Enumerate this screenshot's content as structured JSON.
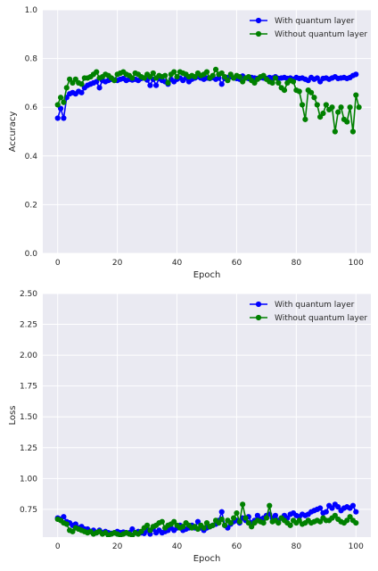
{
  "colors": {
    "with_quantum": "#0000ff",
    "without_quantum": "#008000",
    "plot_bg": "#eaeaf2",
    "grid": "#ffffff"
  },
  "chart_data": [
    {
      "type": "line",
      "title": "",
      "xlabel": "Epoch",
      "ylabel": "Accuracy",
      "xlim": [
        -5,
        105
      ],
      "ylim": [
        0,
        1
      ],
      "xticks": [
        "0",
        "20",
        "40",
        "60",
        "80",
        "100"
      ],
      "yticks": [
        "0.0",
        "0.2",
        "0.4",
        "0.6",
        "0.8",
        "1.0"
      ],
      "grid": true,
      "legend": "top-right",
      "series": [
        {
          "name": "With quantum layer",
          "color": "#0000ff",
          "values": [
            0.555,
            0.595,
            0.555,
            0.64,
            0.655,
            0.66,
            0.655,
            0.665,
            0.66,
            0.68,
            0.69,
            0.695,
            0.7,
            0.705,
            0.68,
            0.71,
            0.705,
            0.71,
            0.715,
            0.712,
            0.71,
            0.715,
            0.718,
            0.71,
            0.715,
            0.712,
            0.715,
            0.71,
            0.718,
            0.72,
            0.712,
            0.69,
            0.715,
            0.69,
            0.718,
            0.71,
            0.705,
            0.695,
            0.715,
            0.705,
            0.715,
            0.72,
            0.71,
            0.72,
            0.705,
            0.715,
            0.72,
            0.725,
            0.72,
            0.715,
            0.72,
            0.718,
            0.722,
            0.715,
            0.72,
            0.695,
            0.718,
            0.722,
            0.725,
            0.72,
            0.718,
            0.715,
            0.728,
            0.72,
            0.718,
            0.722,
            0.72,
            0.718,
            0.722,
            0.72,
            0.718,
            0.722,
            0.72,
            0.725,
            0.718,
            0.72,
            0.722,
            0.718,
            0.72,
            0.715,
            0.722,
            0.718,
            0.72,
            0.715,
            0.71,
            0.722,
            0.715,
            0.72,
            0.705,
            0.718,
            0.72,
            0.715,
            0.72,
            0.725,
            0.718,
            0.72,
            0.722,
            0.718,
            0.722,
            0.73,
            0.735
          ]
        },
        {
          "name": "Without quantum layer",
          "color": "#008000",
          "values": [
            0.61,
            0.64,
            0.62,
            0.68,
            0.715,
            0.7,
            0.715,
            0.7,
            0.695,
            0.72,
            0.72,
            0.725,
            0.735,
            0.745,
            0.72,
            0.725,
            0.735,
            0.73,
            0.72,
            0.71,
            0.735,
            0.74,
            0.745,
            0.735,
            0.73,
            0.72,
            0.74,
            0.735,
            0.725,
            0.72,
            0.735,
            0.725,
            0.74,
            0.72,
            0.73,
            0.725,
            0.73,
            0.7,
            0.735,
            0.745,
            0.725,
            0.745,
            0.74,
            0.735,
            0.725,
            0.73,
            0.725,
            0.74,
            0.73,
            0.735,
            0.745,
            0.72,
            0.73,
            0.755,
            0.735,
            0.74,
            0.725,
            0.71,
            0.735,
            0.72,
            0.73,
            0.725,
            0.705,
            0.72,
            0.725,
            0.71,
            0.7,
            0.715,
            0.725,
            0.73,
            0.715,
            0.705,
            0.7,
            0.72,
            0.7,
            0.68,
            0.67,
            0.7,
            0.71,
            0.705,
            0.67,
            0.665,
            0.61,
            0.55,
            0.67,
            0.66,
            0.64,
            0.61,
            0.56,
            0.575,
            0.61,
            0.59,
            0.6,
            0.5,
            0.58,
            0.6,
            0.55,
            0.54,
            0.6,
            0.5,
            0.65,
            0.6
          ]
        }
      ]
    },
    {
      "type": "line",
      "title": "",
      "xlabel": "Epoch",
      "ylabel": "Loss",
      "xlim": [
        -5,
        105
      ],
      "ylim": [
        0.525,
        2.5
      ],
      "xticks": [
        "0",
        "20",
        "40",
        "60",
        "80",
        "100"
      ],
      "yticks": [
        "0.75",
        "1.00",
        "1.25",
        "1.50",
        "1.75",
        "2.00",
        "2.25",
        "2.50"
      ],
      "grid": true,
      "legend": "top-right",
      "series": [
        {
          "name": "With quantum layer",
          "color": "#0000ff",
          "values": [
            0.68,
            0.67,
            0.69,
            0.65,
            0.64,
            0.62,
            0.63,
            0.6,
            0.61,
            0.59,
            0.59,
            0.57,
            0.58,
            0.56,
            0.58,
            0.56,
            0.57,
            0.56,
            0.555,
            0.56,
            0.57,
            0.56,
            0.565,
            0.56,
            0.56,
            0.59,
            0.56,
            0.57,
            0.56,
            0.555,
            0.58,
            0.55,
            0.59,
            0.56,
            0.58,
            0.56,
            0.57,
            0.58,
            0.6,
            0.58,
            0.6,
            0.62,
            0.58,
            0.59,
            0.6,
            0.62,
            0.6,
            0.65,
            0.6,
            0.58,
            0.6,
            0.61,
            0.62,
            0.63,
            0.66,
            0.73,
            0.62,
            0.6,
            0.63,
            0.65,
            0.66,
            0.64,
            0.68,
            0.66,
            0.69,
            0.64,
            0.66,
            0.7,
            0.67,
            0.68,
            0.7,
            0.71,
            0.68,
            0.7,
            0.66,
            0.68,
            0.7,
            0.68,
            0.71,
            0.72,
            0.7,
            0.69,
            0.71,
            0.7,
            0.71,
            0.73,
            0.74,
            0.75,
            0.76,
            0.72,
            0.73,
            0.78,
            0.76,
            0.79,
            0.77,
            0.74,
            0.76,
            0.77,
            0.76,
            0.78,
            0.73
          ]
        },
        {
          "name": "Without quantum layer",
          "color": "#008000",
          "values": [
            0.67,
            0.66,
            0.64,
            0.63,
            0.58,
            0.57,
            0.6,
            0.59,
            0.58,
            0.57,
            0.56,
            0.57,
            0.55,
            0.56,
            0.57,
            0.55,
            0.56,
            0.54,
            0.55,
            0.56,
            0.55,
            0.54,
            0.55,
            0.56,
            0.55,
            0.54,
            0.56,
            0.55,
            0.57,
            0.6,
            0.62,
            0.58,
            0.61,
            0.62,
            0.64,
            0.65,
            0.6,
            0.62,
            0.63,
            0.65,
            0.62,
            0.6,
            0.61,
            0.64,
            0.62,
            0.6,
            0.61,
            0.59,
            0.62,
            0.6,
            0.64,
            0.61,
            0.62,
            0.66,
            0.64,
            0.67,
            0.62,
            0.66,
            0.64,
            0.68,
            0.72,
            0.65,
            0.79,
            0.68,
            0.64,
            0.61,
            0.64,
            0.66,
            0.65,
            0.64,
            0.68,
            0.78,
            0.65,
            0.66,
            0.64,
            0.68,
            0.66,
            0.64,
            0.62,
            0.66,
            0.64,
            0.66,
            0.63,
            0.64,
            0.66,
            0.64,
            0.65,
            0.66,
            0.65,
            0.68,
            0.66,
            0.66,
            0.68,
            0.7,
            0.67,
            0.65,
            0.64,
            0.66,
            0.69,
            0.66,
            0.64
          ]
        }
      ]
    }
  ]
}
